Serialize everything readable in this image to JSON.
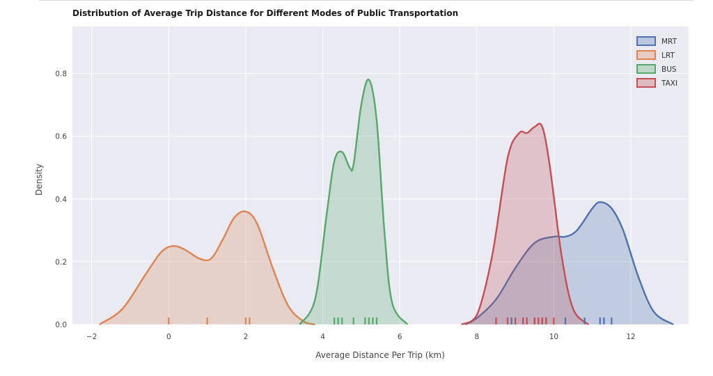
{
  "chart_data": {
    "type": "area",
    "title": "Distribution of Average Trip Distance for Different Modes of Public Transportation",
    "xlabel": "Average Distance Per Trip (km)",
    "ylabel": "Density",
    "xlim": [
      -2.5,
      13.5
    ],
    "ylim": [
      0,
      0.95
    ],
    "x_ticks": [
      -2,
      0,
      2,
      4,
      6,
      8,
      10,
      12
    ],
    "x_tick_labels": [
      "−2",
      "0",
      "2",
      "4",
      "6",
      "8",
      "10",
      "12"
    ],
    "y_ticks": [
      0.0,
      0.2,
      0.4,
      0.6,
      0.8
    ],
    "y_tick_labels": [
      "0.0",
      "0.2",
      "0.4",
      "0.6",
      "0.8"
    ],
    "grid": true,
    "legend_position": "top-right",
    "series": [
      {
        "name": "MRT",
        "color": "#4c72b0",
        "x": [
          7.7,
          8.0,
          8.5,
          9.0,
          9.5,
          10.0,
          10.3,
          10.6,
          11.0,
          11.2,
          11.5,
          11.8,
          12.2,
          12.6,
          13.1
        ],
        "y": [
          0.0,
          0.02,
          0.08,
          0.18,
          0.26,
          0.28,
          0.28,
          0.3,
          0.37,
          0.39,
          0.37,
          0.3,
          0.15,
          0.04,
          0.0
        ],
        "rug": [
          8.9,
          9.2,
          9.5,
          9.7,
          9.8,
          10.3,
          10.8,
          11.2,
          11.3,
          11.5
        ]
      },
      {
        "name": "LRT",
        "color": "#dd8452",
        "x": [
          -1.8,
          -1.2,
          -0.6,
          -0.2,
          0.1,
          0.4,
          0.8,
          1.1,
          1.4,
          1.7,
          2.0,
          2.3,
          2.7,
          3.1,
          3.5,
          3.8
        ],
        "y": [
          0.0,
          0.05,
          0.16,
          0.23,
          0.25,
          0.24,
          0.21,
          0.21,
          0.27,
          0.34,
          0.36,
          0.32,
          0.18,
          0.06,
          0.01,
          0.0
        ],
        "rug": [
          0.0,
          1.0,
          2.0,
          2.1
        ]
      },
      {
        "name": "BUS",
        "color": "#55a868",
        "x": [
          3.4,
          3.8,
          4.1,
          4.3,
          4.5,
          4.7,
          4.8,
          5.0,
          5.2,
          5.4,
          5.6,
          5.8,
          6.2
        ],
        "y": [
          0.0,
          0.08,
          0.35,
          0.52,
          0.55,
          0.5,
          0.51,
          0.7,
          0.78,
          0.65,
          0.3,
          0.07,
          0.0
        ],
        "rug": [
          4.3,
          4.4,
          4.5,
          4.8,
          5.1,
          5.2,
          5.3,
          5.4
        ]
      },
      {
        "name": "TAXI",
        "color": "#c44e52",
        "x": [
          7.6,
          8.0,
          8.4,
          8.8,
          9.1,
          9.3,
          9.5,
          9.7,
          9.9,
          10.2,
          10.5,
          10.9
        ],
        "y": [
          0.0,
          0.03,
          0.22,
          0.53,
          0.61,
          0.61,
          0.63,
          0.63,
          0.5,
          0.22,
          0.05,
          0.0
        ],
        "rug": [
          8.5,
          8.8,
          9.0,
          9.2,
          9.3,
          9.5,
          9.6,
          9.7,
          9.8,
          10.0
        ]
      }
    ]
  }
}
